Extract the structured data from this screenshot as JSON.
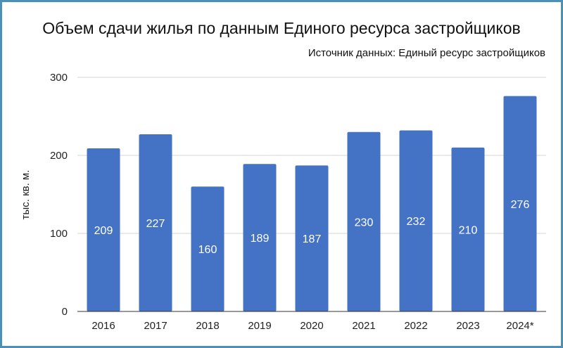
{
  "chart_data": {
    "type": "bar",
    "title": "Объем сдачи жилья по данным Единого ресурса застройщиков",
    "subtitle": "Источник данных: Единый ресурс застройщиков",
    "ylabel": "тыс. кв. м.",
    "xlabel": "",
    "ylim": [
      0,
      300
    ],
    "yticks": [
      0,
      100,
      200,
      300
    ],
    "grid": true,
    "bar_color": "#4472c4",
    "categories": [
      "2016",
      "2017",
      "2018",
      "2019",
      "2020",
      "2021",
      "2022",
      "2023",
      "2024*"
    ],
    "values": [
      209,
      227,
      160,
      189,
      187,
      230,
      232,
      210,
      276
    ]
  }
}
